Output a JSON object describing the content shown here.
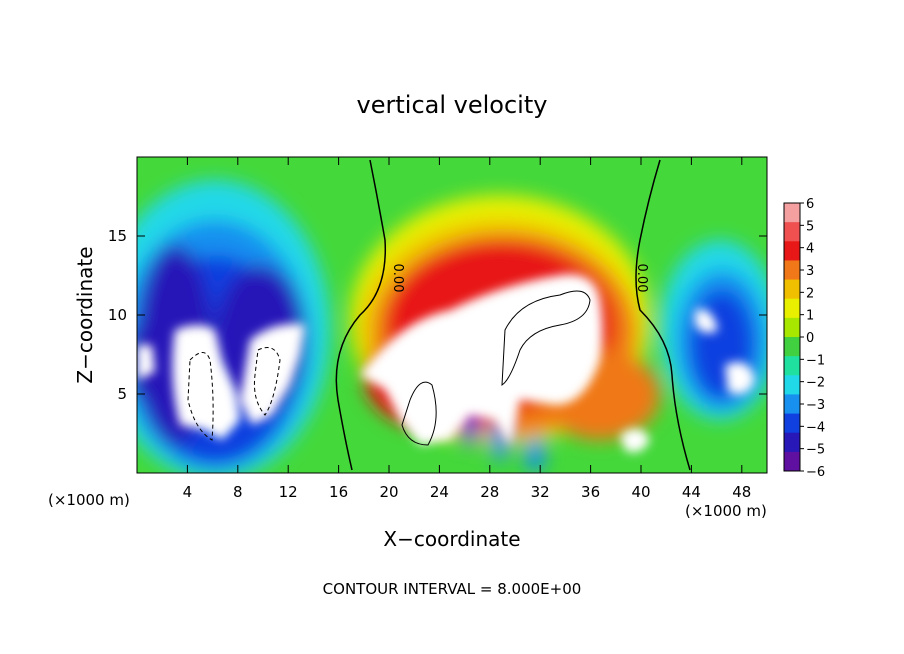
{
  "chart_data": {
    "type": "heatmap",
    "title": "vertical velocity",
    "xlabel": "X−coordinate",
    "ylabel": "Z−coordinate",
    "x_unit_label": "(×1000 m)",
    "y_unit_label": "(×1000 m)",
    "xlim": [
      0,
      50
    ],
    "ylim": [
      0,
      20
    ],
    "x_ticks": [
      4,
      8,
      12,
      16,
      20,
      24,
      28,
      32,
      36,
      40,
      44,
      48
    ],
    "y_ticks": [
      5,
      10,
      15
    ],
    "colorbar": {
      "levels": [
        6,
        5,
        4,
        3,
        2,
        1,
        0,
        -1,
        -2,
        -3,
        -4,
        -5,
        -6
      ],
      "labels": [
        "6",
        "5",
        "4",
        "3",
        "2",
        "1",
        "0",
        "−1",
        "−2",
        "−3",
        "−4",
        "−5",
        "−6"
      ],
      "colors": [
        "#f4a0a0",
        "#f05050",
        "#e81818",
        "#f07818",
        "#f0c000",
        "#e8f000",
        "#a8e800",
        "#40d040",
        "#20e0a0",
        "#20d8e8",
        "#1890f0",
        "#1040e0",
        "#2818b8",
        "#6010a0"
      ]
    },
    "contour_labels": [
      "0.00",
      "0.00"
    ],
    "footnote": "CONTOUR INTERVAL = 8.000E+00"
  }
}
